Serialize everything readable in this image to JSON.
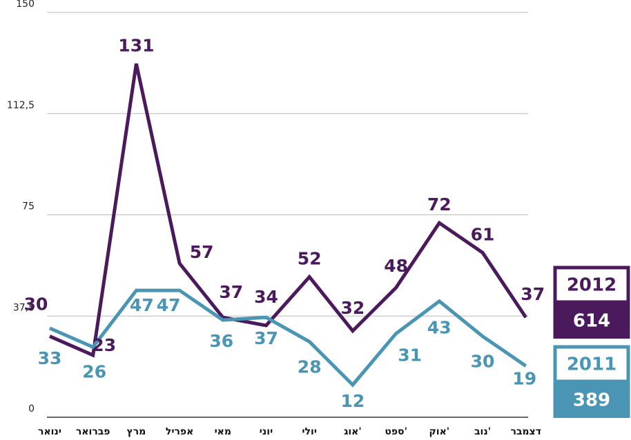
{
  "chart_data": {
    "type": "line",
    "categories": [
      "ינואר",
      "פברואר",
      "מרץ",
      "אפריל",
      "מאי",
      "יוני",
      "יולי",
      "אוג'",
      "ספט'",
      "אוק'",
      "נוב'",
      "דצמבר"
    ],
    "series": [
      {
        "name": "2012",
        "total": "614",
        "color": "#4a1a5c",
        "values": [
          30,
          23,
          131,
          57,
          37,
          34,
          52,
          32,
          48,
          72,
          61,
          37
        ]
      },
      {
        "name": "2011",
        "total": "389",
        "color": "#4a95b3",
        "values": [
          33,
          26,
          47,
          47,
          36,
          37,
          28,
          12,
          31,
          43,
          30,
          19
        ]
      }
    ],
    "ylim": [
      0,
      150
    ],
    "yticks": [
      0,
      {
        "value": 37.5,
        "label": "37,5"
      },
      75,
      {
        "value": 112.5,
        "label": "112,5"
      },
      150
    ],
    "grid": true
  }
}
